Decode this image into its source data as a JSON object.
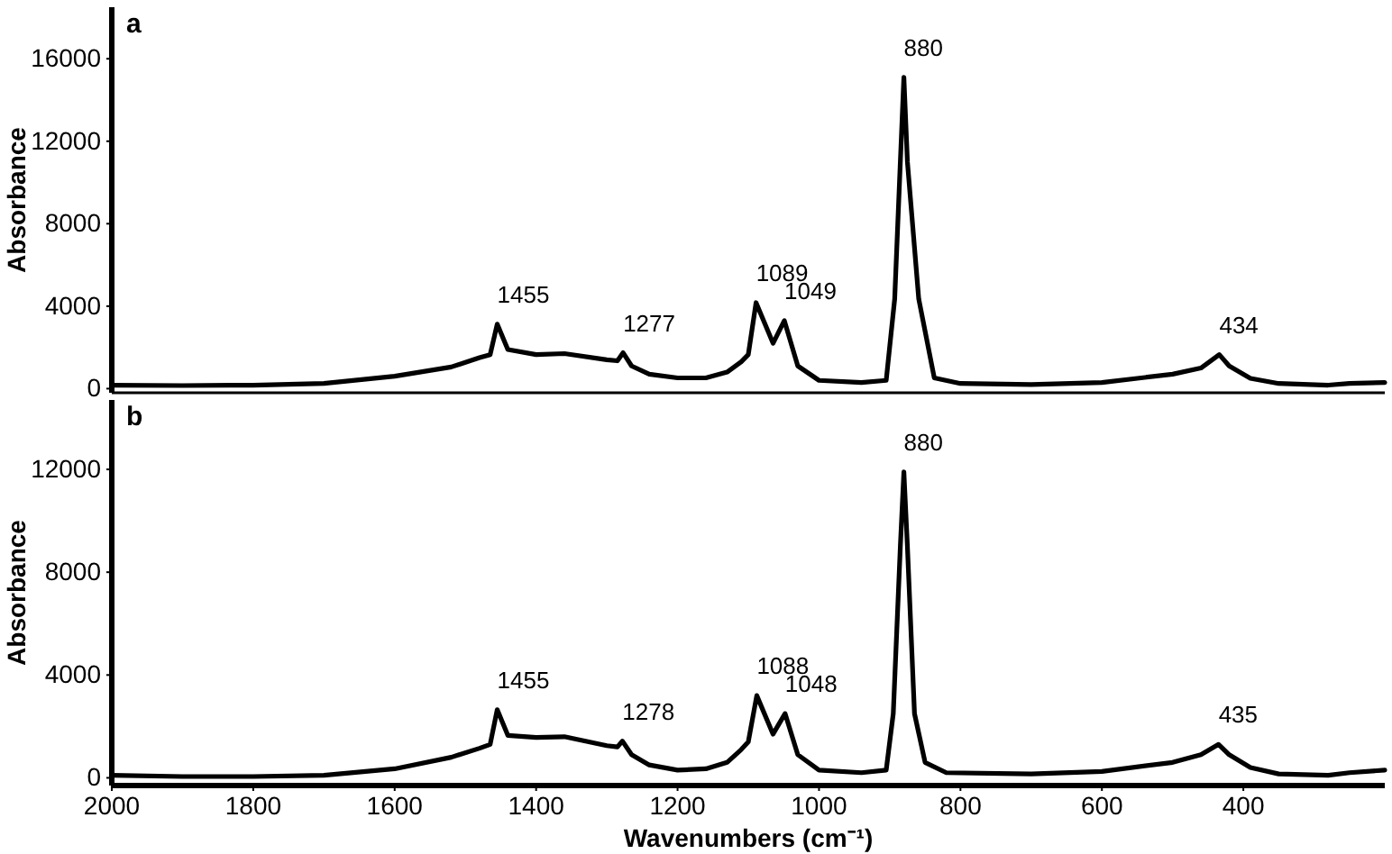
{
  "chart_data": [
    {
      "type": "line",
      "title": "a",
      "ylabel": "Absorbance",
      "xlim": [
        2000,
        200
      ],
      "ylim": [
        -200,
        18500
      ],
      "yticks": [
        0,
        4000,
        8000,
        12000,
        16000
      ],
      "tick_labels": "y",
      "x": [
        2000,
        1900,
        1800,
        1700,
        1600,
        1520,
        1480,
        1465,
        1455,
        1440,
        1400,
        1360,
        1300,
        1285,
        1277,
        1265,
        1240,
        1200,
        1160,
        1130,
        1110,
        1100,
        1089,
        1065,
        1049,
        1030,
        1000,
        940,
        905,
        893,
        885,
        880,
        875,
        859,
        837,
        800,
        700,
        600,
        500,
        460,
        434,
        420,
        390,
        350,
        280,
        250,
        200
      ],
      "series": [
        {
          "color": "#000000",
          "values": [
            170,
            150,
            170,
            250,
            600,
            1050,
            1500,
            1650,
            3130,
            1900,
            1650,
            1700,
            1400,
            1350,
            1740,
            1100,
            700,
            520,
            520,
            800,
            1300,
            1650,
            4170,
            2200,
            3300,
            1100,
            400,
            300,
            400,
            4350,
            11000,
            15100,
            11000,
            4350,
            520,
            250,
            200,
            300,
            700,
            1000,
            1650,
            1100,
            500,
            250,
            170,
            250,
            300
          ]
        }
      ],
      "annotations": [
        {
          "text": "1455",
          "x": 1455,
          "y": 3130
        },
        {
          "text": "1277",
          "x": 1277,
          "y": 1740
        },
        {
          "text": "1089",
          "x": 1089,
          "y": 4170
        },
        {
          "text": "1049",
          "x": 1049,
          "y": 3300
        },
        {
          "text": "880",
          "x": 880,
          "y": 15100
        },
        {
          "text": "434",
          "x": 434,
          "y": 1650
        }
      ]
    },
    {
      "type": "line",
      "title": "b",
      "ylabel": "Absorbance",
      "xlabel": "Wavenumbers (cm⁻¹)",
      "xlim": [
        2000,
        200
      ],
      "xticks": [
        2000,
        1800,
        1600,
        1400,
        1200,
        1000,
        800,
        600,
        400
      ],
      "ylim": [
        -300,
        14700
      ],
      "yticks": [
        0,
        4000,
        8000,
        12000
      ],
      "x": [
        2000,
        1900,
        1800,
        1700,
        1600,
        1520,
        1480,
        1465,
        1455,
        1440,
        1400,
        1360,
        1300,
        1285,
        1278,
        1265,
        1240,
        1200,
        1160,
        1130,
        1110,
        1100,
        1088,
        1065,
        1048,
        1030,
        1000,
        940,
        905,
        895,
        885,
        880,
        875,
        865,
        850,
        820,
        700,
        600,
        500,
        460,
        435,
        420,
        390,
        350,
        280,
        250,
        200
      ],
      "series": [
        {
          "color": "#000000",
          "values": [
            100,
            50,
            50,
            100,
            350,
            800,
            1150,
            1300,
            2650,
            1650,
            1570,
            1600,
            1250,
            1200,
            1430,
            900,
            500,
            300,
            350,
            600,
            1100,
            1400,
            3200,
            1700,
            2500,
            900,
            300,
            200,
            300,
            2500,
            9000,
            11900,
            9000,
            2500,
            600,
            200,
            150,
            250,
            600,
            900,
            1300,
            900,
            400,
            150,
            100,
            200,
            300
          ]
        }
      ],
      "annotations": [
        {
          "text": "1455",
          "x": 1455,
          "y": 2650
        },
        {
          "text": "1278",
          "x": 1278,
          "y": 1430
        },
        {
          "text": "1088",
          "x": 1088,
          "y": 3200
        },
        {
          "text": "1048",
          "x": 1048,
          "y": 2500
        },
        {
          "text": "880",
          "x": 880,
          "y": 11900
        },
        {
          "text": "435",
          "x": 435,
          "y": 1300
        }
      ]
    }
  ]
}
